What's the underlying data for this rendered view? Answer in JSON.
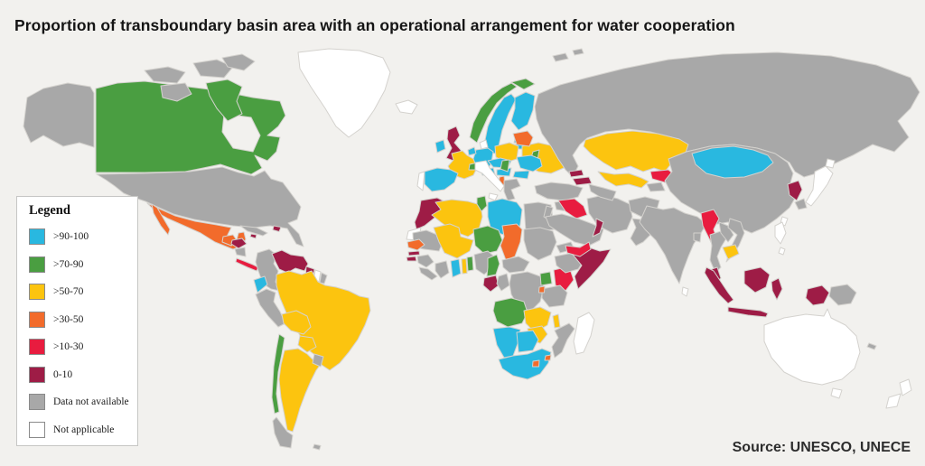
{
  "title": "Proportion of transboundary basin area with an operational arrangement for water cooperation",
  "source": "Source: UNESCO, UNECE",
  "legend": {
    "title": "Legend",
    "items": [
      {
        "key": "90-100",
        "label": ">90-100",
        "color": "#29b8e0"
      },
      {
        "key": "70-90",
        "label": ">70-90",
        "color": "#4a9e41"
      },
      {
        "key": "50-70",
        "label": ">50-70",
        "color": "#fcc40f"
      },
      {
        "key": "30-50",
        "label": ">30-50",
        "color": "#f26b2b"
      },
      {
        "key": "10-30",
        "label": ">10-30",
        "color": "#e81c3f"
      },
      {
        "key": "0-10",
        "label": "0-10",
        "color": "#9e1c46"
      },
      {
        "key": "no-data",
        "label": "Data not available",
        "color": "#a8a8a8"
      },
      {
        "key": "not-applicable",
        "label": "Not applicable",
        "color": "#ffffff"
      }
    ]
  },
  "map": {
    "ocean_color": "#f2f1ee",
    "border_color": "#d4d2ce",
    "regions": {
      "alaska": "no-data",
      "canada": "70-90",
      "hudson-bay": "ocean",
      "arctic-island-1": "no-data",
      "arctic-island-2": "no-data",
      "victoria-island": "no-data",
      "baffin-island": "70-90",
      "ellesmere-island": "no-data",
      "greenland": "not-applicable",
      "usa": "no-data",
      "mexico": "30-50",
      "baja-california": "30-50",
      "guatemala": "30-50",
      "honduras": "0-10",
      "nicaragua": "no-data",
      "costa-rica-panama": "10-30",
      "cuba": "no-data",
      "jamaica": "0-10",
      "hispaniola": "0-10",
      "colombia": "no-data",
      "venezuela": "0-10",
      "guyana": "0-10",
      "suriname": "not-applicable",
      "french-guiana": "no-data",
      "ecuador": "90-100",
      "peru": "no-data",
      "brazil": "50-70",
      "bolivia": "50-70",
      "paraguay": "50-70",
      "argentina": "50-70",
      "chile": "70-90",
      "patagonia-south": "no-data",
      "uruguay": "no-data",
      "falklands": "no-data",
      "iceland": "not-applicable",
      "ireland": "90-100",
      "uk": "0-10",
      "norway": "70-90",
      "norway-north": "70-90",
      "sweden": "90-100",
      "finland": "90-100",
      "estonia": "not-applicable",
      "latvia": "90-100",
      "lithuania": "90-100",
      "denmark": "not-applicable",
      "germany": "90-100",
      "benelux": "90-100",
      "france": "50-70",
      "spain": "90-100",
      "portugal": "not-applicable",
      "poland": "50-70",
      "czech-slovakia": "90-100",
      "austria": "90-100",
      "switzerland": "70-90",
      "hungary": "90-100",
      "ukraine": "50-70",
      "belarus": "30-50",
      "moldova": "70-90",
      "romania": "90-100",
      "serbia": "70-90",
      "bulgaria": "90-100",
      "albania": "30-50",
      "greece": "no-data",
      "italy": "not-applicable",
      "sicily": "not-applicable",
      "morocco": "0-10",
      "western-sahara": "not-applicable",
      "algeria": "50-70",
      "tunisia": "70-90",
      "libya": "90-100",
      "egypt": "no-data",
      "mauritania": "no-data",
      "mali": "50-70",
      "niger": "70-90",
      "chad": "30-50",
      "sudan": "no-data",
      "senegal": "30-50",
      "gambia": "0-10",
      "guinea-bissau": "0-10",
      "guinea": "no-data",
      "sierra-leone-liberia": "no-data",
      "ivory-coast": "no-data",
      "ghana": "90-100",
      "togo": "50-70",
      "benin": "70-90",
      "nigeria": "no-data",
      "cameroon": "70-90",
      "central-african-republic": "no-data",
      "gabon": "0-10",
      "congo": "no-data",
      "drc": "no-data",
      "uganda": "70-90",
      "kenya": "10-30",
      "ethiopia": "no-data",
      "eritrea": "no-data",
      "somalia": "0-10",
      "tanzania": "no-data",
      "rwanda-burundi": "30-50",
      "angola": "70-90",
      "zambia": "50-70",
      "malawi": "50-70",
      "mozambique": "no-data",
      "zimbabwe": "50-70",
      "namibia": "90-100",
      "botswana": "90-100",
      "south-africa": "90-100",
      "lesotho": "30-50",
      "swaziland": "30-50",
      "madagascar": "not-applicable",
      "turkey": "no-data",
      "syria": "no-data",
      "israel-jordan": "no-data",
      "iraq": "10-30",
      "georgia": "0-10",
      "armenia-azerbaijan": "0-10",
      "iran": "no-data",
      "saudi-arabia": "no-data",
      "yemen": "10-30",
      "oman": "0-10",
      "kazakhstan": "50-70",
      "uzbekistan": "50-70",
      "turkmenistan": "no-data",
      "kyrgyzstan": "10-30",
      "tajikistan": "no-data",
      "afghanistan": "no-data",
      "pakistan": "no-data",
      "india": "no-data",
      "bangladesh": "no-data",
      "sri-lanka": "not-applicable",
      "russia": "no-data",
      "svalbard-1": "no-data",
      "svalbard-2": "no-data",
      "china": "no-data",
      "mongolia": "90-100",
      "north-korea": "0-10",
      "south-korea": "no-data",
      "japan": "not-applicable",
      "hokkaido": "not-applicable",
      "taiwan": "not-applicable",
      "myanmar": "10-30",
      "thailand": "no-data",
      "laos": "no-data",
      "vietnam": "no-data",
      "cambodia": "50-70",
      "malaysia-peninsula": "0-10",
      "borneo": "0-10",
      "sumatra": "0-10",
      "java": "0-10",
      "sulawesi": "0-10",
      "papua-west": "0-10",
      "papua-new-guinea": "no-data",
      "philippines": "not-applicable",
      "philippines-2": "not-applicable",
      "australia": "not-applicable",
      "tasmania": "not-applicable",
      "new-zealand-north": "not-applicable",
      "new-zealand-south": "not-applicable",
      "new-caledonia": "no-data"
    }
  }
}
